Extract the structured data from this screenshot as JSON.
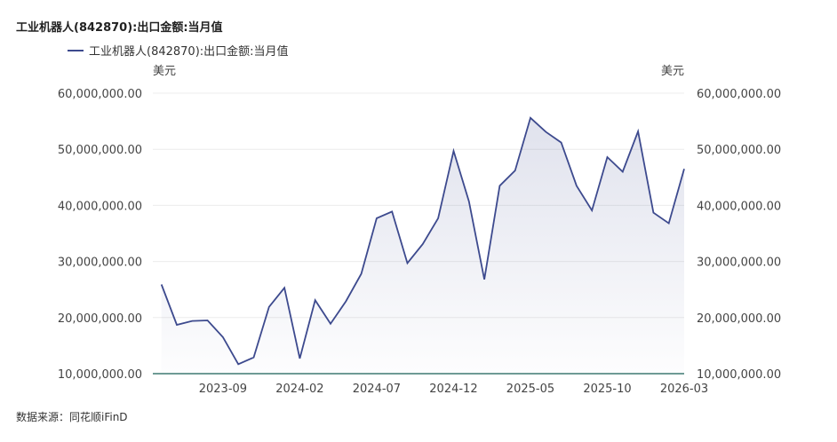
{
  "chart_data": {
    "type": "area",
    "title": "工业机器人(842870):出口金额:当月值",
    "legend": [
      "工业机器人(842870):出口金额:当月值"
    ],
    "y_unit_left": "美元",
    "y_unit_right": "美元",
    "source": "数据来源：同花顺iFinD",
    "ylim": [
      10000000,
      60000000
    ],
    "y_ticks": [
      10000000,
      20000000,
      30000000,
      40000000,
      50000000,
      60000000
    ],
    "y_tick_labels": [
      "10,000,000.00",
      "20,000,000.00",
      "30,000,000.00",
      "40,000,000.00",
      "50,000,000.00",
      "60,000,000.00"
    ],
    "x_tick_labels": [
      "2023-09",
      "2024-02",
      "2024-07",
      "2024-12",
      "2025-05",
      "2025-10",
      "2026-03"
    ],
    "x": [
      "2023-05",
      "2023-06",
      "2023-07",
      "2023-08",
      "2023-09",
      "2023-10",
      "2023-11",
      "2023-12",
      "2024-01",
      "2024-02",
      "2024-03",
      "2024-04",
      "2024-05",
      "2024-06",
      "2024-07",
      "2024-08",
      "2024-09",
      "2024-10",
      "2024-11",
      "2024-12",
      "2025-01",
      "2025-02",
      "2025-03",
      "2025-04",
      "2025-05",
      "2025-06",
      "2025-07",
      "2025-08",
      "2025-09",
      "2025-10",
      "2025-11",
      "2025-12",
      "2026-01",
      "2026-02",
      "2026-03"
    ],
    "series": [
      {
        "name": "工业机器人(842870):出口金额:当月值",
        "color": "#3d4a8e",
        "values": [
          25900000,
          18700000,
          19400000,
          19500000,
          16500000,
          11700000,
          12900000,
          21900000,
          25300000,
          12700000,
          23100000,
          18900000,
          22900000,
          27800000,
          37700000,
          38900000,
          29700000,
          33100000,
          37700000,
          49700000,
          40700000,
          26800000,
          43500000,
          46200000,
          55600000,
          53100000,
          51200000,
          43500000,
          39100000,
          48600000,
          46000000,
          53200000,
          38700000,
          36800000,
          46500000
        ]
      }
    ],
    "grid": true
  }
}
